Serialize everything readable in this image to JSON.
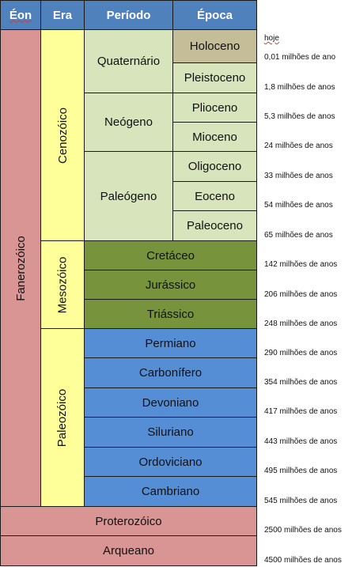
{
  "headers": {
    "eon": "Éon",
    "era": "Era",
    "periodo": "Período",
    "epoca": "Época"
  },
  "eons": {
    "fanerozoico": "Fanerozóico",
    "proterozoico": "Proterozóico",
    "arqueano": "Arqueano"
  },
  "eras": {
    "cenozoico": "Cenozóico",
    "mesozoico": "Mesozóico",
    "paleozoico": "Paleozóico"
  },
  "periods": {
    "quaternario": "Quaternário",
    "neogeno": "Neógeno",
    "paleogeno": "Paleógeno",
    "cretaceo": "Cretáceo",
    "jurassico": "Jurássico",
    "triassico": "Triássico",
    "permiano": "Permiano",
    "carbonifero": "Carbonífero",
    "devoniano": "Devoniano",
    "siluriano": "Siluriano",
    "ordoviciano": "Ordoviciano",
    "cambriano": "Cambriano"
  },
  "epochs": {
    "holoceno": "Holoceno",
    "pleistoceno": "Pleistoceno",
    "plioceno": "Plioceno",
    "mioceno": "Mioceno",
    "oligoceno": "Oligoceno",
    "eoceno": "Eoceno",
    "paleoceno": "Paleoceno"
  },
  "ages": [
    "hoje",
    "0,01 milhões de ano",
    "1,8 milhões de anos",
    "5,3 milhões de anos",
    "24 milhões de anos",
    "33 milhões de anos",
    "54 milhões de anos",
    "65 milhões de anos",
    "142 milhões de anos",
    "206 milhões de anos",
    "248 milhões de anos",
    "290 milhões de anos",
    "354 milhões de anos",
    "417 milhões de anos",
    "443 milhões de anos",
    "495 milhões de anos",
    "545 milhões de anos",
    "2500 milhões de anos",
    "4500 milhões de anos"
  ],
  "colors": {
    "header": "#4f81bd",
    "phanerozoic": "#d99594",
    "cenozoic_era": "#ffff99",
    "cenozoic_period": "#d7e4bc",
    "holocene": "#c4bd97",
    "mesozoic_period": "#77933c",
    "paleozoic_period": "#558ed5"
  }
}
